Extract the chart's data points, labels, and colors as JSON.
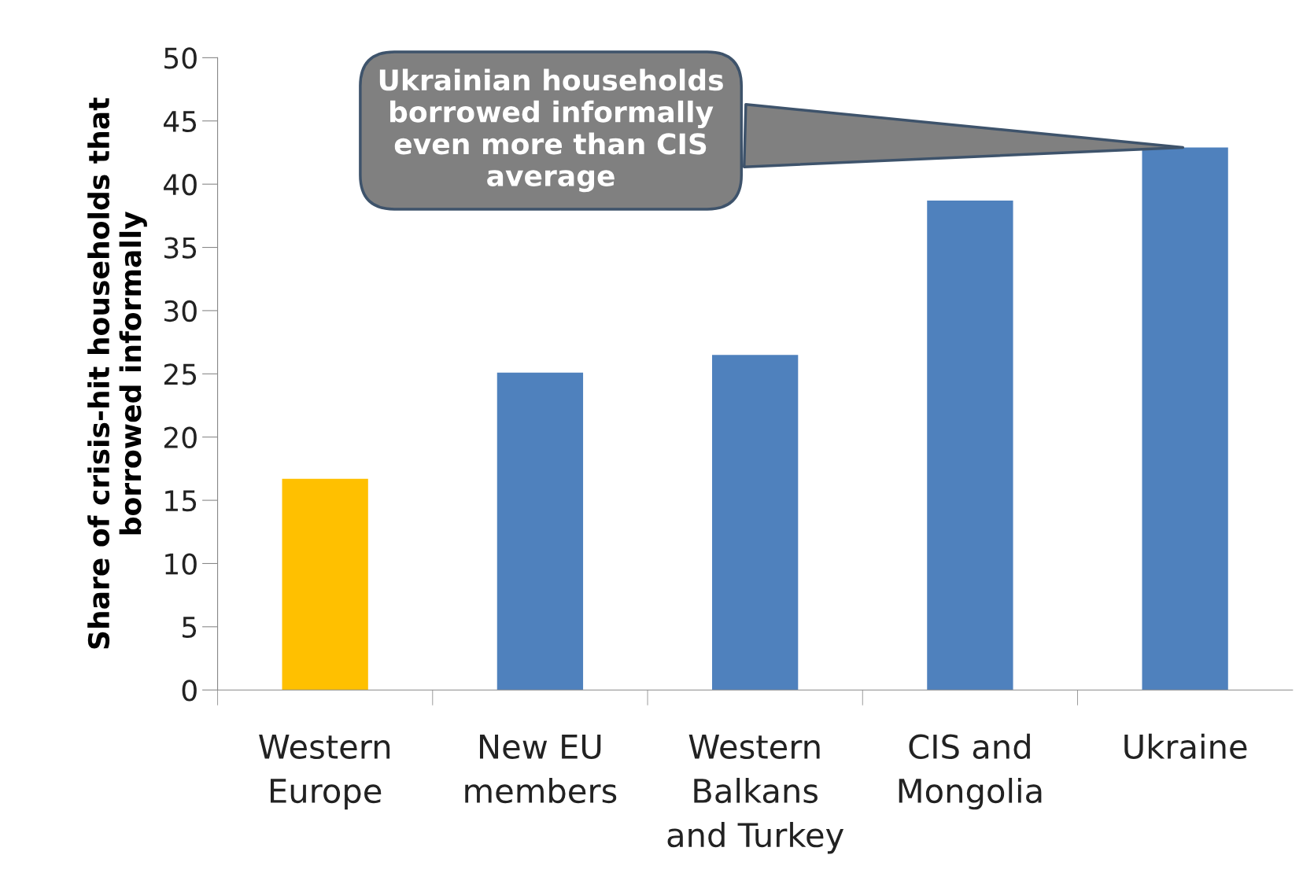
{
  "chart_data": {
    "type": "bar",
    "ylabel": "Share of crisis-hit households that\nborrowed informally",
    "categories": [
      "Western\nEurope",
      "New EU\nmembers",
      "Western\nBalkans\nand Turkey",
      "CIS and\nMongolia",
      "Ukraine"
    ],
    "values": [
      16.7,
      25.1,
      26.5,
      38.7,
      42.9
    ],
    "colors": [
      "#ffc000",
      "#4f81bd",
      "#4f81bd",
      "#4f81bd",
      "#4f81bd"
    ],
    "ylim": [
      0,
      50
    ],
    "yticks": [
      0,
      5,
      10,
      15,
      20,
      25,
      30,
      35,
      40,
      45,
      50
    ],
    "grid": false,
    "legend": false,
    "annotations": [
      {
        "text": "Ukrainian households\nborrowed informally\neven more than CIS\naverage",
        "x": "Ukraine",
        "y": 42.9
      }
    ]
  }
}
